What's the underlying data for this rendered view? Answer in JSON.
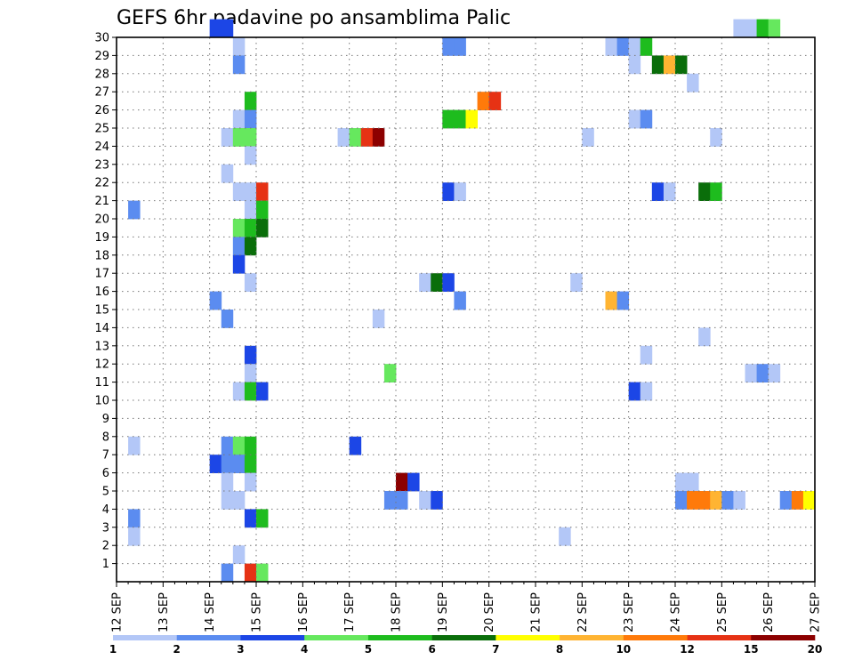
{
  "chart_data": {
    "type": "heatmap",
    "title": "GEFS 6hr padavine po ansamblima Palic",
    "x_ticks": [
      "12 SEP",
      "13 SEP",
      "14 SEP",
      "15 SEP",
      "16 SEP",
      "17 SEP",
      "18 SEP",
      "19 SEP",
      "20 SEP",
      "21 SEP",
      "22 SEP",
      "23 SEP",
      "24 SEP",
      "25 SEP",
      "26 SEP",
      "27 SEP"
    ],
    "y_ticks": [
      1,
      2,
      3,
      4,
      5,
      6,
      7,
      8,
      9,
      10,
      11,
      12,
      13,
      14,
      15,
      16,
      17,
      18,
      19,
      20,
      21,
      22,
      23,
      24,
      25,
      26,
      27,
      28,
      29,
      30
    ],
    "x_range": [
      "12 SEP 00Z",
      "27 SEP 00Z"
    ],
    "time_step_hours": 6,
    "y_range": [
      0,
      30
    ],
    "grid": "dotted",
    "colorbar": {
      "labels": [
        "1",
        "2",
        "3",
        "4",
        "5",
        "6",
        "7",
        "8",
        "10",
        "12",
        "15",
        "20"
      ],
      "colors": [
        "#b3c7f7",
        "#5b8cf0",
        "#1c46e6",
        "#66e85e",
        "#1ebc1e",
        "#0a6e0a",
        "#ffff00",
        "#ffb432",
        "#ff7a0a",
        "#e63214",
        "#8c0000"
      ]
    },
    "levels": [
      "#b3c7f7",
      "#5b8cf0",
      "#1c46e6",
      "#66e85e",
      "#1ebc1e",
      "#0a6e0a",
      "#ffff00",
      "#ffb432",
      "#ff7a0a",
      "#e63214",
      "#8c0000"
    ],
    "cells": [
      [
        "14 SEP 00Z",
        30,
        2
      ],
      [
        "14 SEP 06Z",
        30,
        2
      ],
      [
        "25 SEP 06Z",
        30,
        0
      ],
      [
        "25 SEP 12Z",
        30,
        0
      ],
      [
        "25 SEP 18Z",
        30,
        4
      ],
      [
        "26 SEP 00Z",
        30,
        3
      ],
      [
        "14 SEP 12Z",
        29,
        0
      ],
      [
        "19 SEP 00Z",
        29,
        1
      ],
      [
        "19 SEP 06Z",
        29,
        1
      ],
      [
        "22 SEP 12Z",
        29,
        0
      ],
      [
        "22 SEP 18Z",
        29,
        1
      ],
      [
        "23 SEP 00Z",
        29,
        0
      ],
      [
        "23 SEP 06Z",
        29,
        4
      ],
      [
        "14 SEP 12Z",
        28,
        1
      ],
      [
        "23 SEP 00Z",
        28,
        0
      ],
      [
        "23 SEP 12Z",
        28,
        5
      ],
      [
        "23 SEP 18Z",
        28,
        7
      ],
      [
        "24 SEP 00Z",
        28,
        5
      ],
      [
        "24 SEP 06Z",
        27,
        0
      ],
      [
        "14 SEP 18Z",
        26,
        4
      ],
      [
        "19 SEP 18Z",
        26,
        8
      ],
      [
        "20 SEP 00Z",
        26,
        9
      ],
      [
        "14 SEP 12Z",
        25,
        0
      ],
      [
        "14 SEP 18Z",
        25,
        1
      ],
      [
        "19 SEP 00Z",
        25,
        4
      ],
      [
        "19 SEP 06Z",
        25,
        4
      ],
      [
        "19 SEP 12Z",
        25,
        6
      ],
      [
        "23 SEP 00Z",
        25,
        0
      ],
      [
        "23 SEP 06Z",
        25,
        1
      ],
      [
        "14 SEP 06Z",
        24,
        0
      ],
      [
        "14 SEP 12Z",
        24,
        3
      ],
      [
        "14 SEP 18Z",
        24,
        3
      ],
      [
        "16 SEP 18Z",
        24,
        0
      ],
      [
        "17 SEP 00Z",
        24,
        3
      ],
      [
        "17 SEP 06Z",
        24,
        9
      ],
      [
        "17 SEP 12Z",
        24,
        10
      ],
      [
        "22 SEP 00Z",
        24,
        0
      ],
      [
        "24 SEP 18Z",
        24,
        0
      ],
      [
        "14 SEP 18Z",
        23,
        0
      ],
      [
        "14 SEP 06Z",
        22,
        0
      ],
      [
        "14 SEP 12Z",
        21,
        0
      ],
      [
        "14 SEP 18Z",
        21,
        0
      ],
      [
        "15 SEP 00Z",
        21,
        9
      ],
      [
        "19 SEP 00Z",
        21,
        2
      ],
      [
        "19 SEP 06Z",
        21,
        0
      ],
      [
        "23 SEP 12Z",
        21,
        2
      ],
      [
        "23 SEP 18Z",
        21,
        0
      ],
      [
        "24 SEP 12Z",
        21,
        5
      ],
      [
        "24 SEP 18Z",
        21,
        4
      ],
      [
        "12 SEP 06Z",
        20,
        1
      ],
      [
        "14 SEP 18Z",
        20,
        0
      ],
      [
        "15 SEP 00Z",
        20,
        4
      ],
      [
        "14 SEP 12Z",
        19,
        3
      ],
      [
        "14 SEP 18Z",
        19,
        4
      ],
      [
        "15 SEP 00Z",
        19,
        5
      ],
      [
        "14 SEP 12Z",
        18,
        1
      ],
      [
        "14 SEP 18Z",
        18,
        5
      ],
      [
        "14 SEP 12Z",
        17,
        2
      ],
      [
        "14 SEP 18Z",
        16,
        0
      ],
      [
        "18 SEP 12Z",
        16,
        0
      ],
      [
        "18 SEP 18Z",
        16,
        5
      ],
      [
        "19 SEP 00Z",
        16,
        2
      ],
      [
        "21 SEP 18Z",
        16,
        0
      ],
      [
        "14 SEP 00Z",
        15,
        1
      ],
      [
        "19 SEP 06Z",
        15,
        1
      ],
      [
        "22 SEP 12Z",
        15,
        7
      ],
      [
        "22 SEP 18Z",
        15,
        1
      ],
      [
        "14 SEP 06Z",
        14,
        1
      ],
      [
        "17 SEP 12Z",
        14,
        0
      ],
      [
        "24 SEP 12Z",
        13,
        0
      ],
      [
        "14 SEP 18Z",
        12,
        2
      ],
      [
        "23 SEP 06Z",
        12,
        0
      ],
      [
        "14 SEP 18Z",
        11,
        0
      ],
      [
        "17 SEP 18Z",
        11,
        3
      ],
      [
        "25 SEP 12Z",
        11,
        0
      ],
      [
        "25 SEP 18Z",
        11,
        1
      ],
      [
        "26 SEP 00Z",
        11,
        0
      ],
      [
        "14 SEP 12Z",
        10,
        0
      ],
      [
        "14 SEP 18Z",
        10,
        4
      ],
      [
        "15 SEP 00Z",
        10,
        2
      ],
      [
        "23 SEP 00Z",
        10,
        2
      ],
      [
        "23 SEP 06Z",
        10,
        0
      ],
      [
        "12 SEP 06Z",
        7,
        0
      ],
      [
        "14 SEP 06Z",
        7,
        1
      ],
      [
        "14 SEP 12Z",
        7,
        3
      ],
      [
        "14 SEP 18Z",
        7,
        4
      ],
      [
        "17 SEP 00Z",
        7,
        2
      ],
      [
        "14 SEP 00Z",
        6,
        2
      ],
      [
        "14 SEP 06Z",
        6,
        1
      ],
      [
        "14 SEP 12Z",
        6,
        1
      ],
      [
        "14 SEP 18Z",
        6,
        4
      ],
      [
        "14 SEP 06Z",
        5,
        0
      ],
      [
        "14 SEP 18Z",
        5,
        0
      ],
      [
        "18 SEP 00Z",
        5,
        10
      ],
      [
        "18 SEP 06Z",
        5,
        2
      ],
      [
        "24 SEP 00Z",
        5,
        0
      ],
      [
        "24 SEP 06Z",
        5,
        0
      ],
      [
        "14 SEP 06Z",
        4,
        0
      ],
      [
        "14 SEP 12Z",
        4,
        0
      ],
      [
        "17 SEP 18Z",
        4,
        1
      ],
      [
        "18 SEP 00Z",
        4,
        1
      ],
      [
        "18 SEP 12Z",
        4,
        0
      ],
      [
        "18 SEP 18Z",
        4,
        2
      ],
      [
        "24 SEP 00Z",
        4,
        1
      ],
      [
        "24 SEP 06Z",
        4,
        8
      ],
      [
        "24 SEP 12Z",
        4,
        8
      ],
      [
        "24 SEP 18Z",
        4,
        7
      ],
      [
        "25 SEP 00Z",
        4,
        1
      ],
      [
        "25 SEP 06Z",
        4,
        0
      ],
      [
        "26 SEP 06Z",
        4,
        1
      ],
      [
        "26 SEP 12Z",
        4,
        8
      ],
      [
        "26 SEP 18Z",
        4,
        6
      ],
      [
        "12 SEP 06Z",
        3,
        1
      ],
      [
        "14 SEP 18Z",
        3,
        2
      ],
      [
        "15 SEP 00Z",
        3,
        4
      ],
      [
        "12 SEP 06Z",
        2,
        0
      ],
      [
        "21 SEP 12Z",
        2,
        0
      ],
      [
        "14 SEP 12Z",
        1,
        0
      ],
      [
        "14 SEP 06Z",
        0,
        1
      ],
      [
        "14 SEP 18Z",
        0,
        9
      ],
      [
        "15 SEP 00Z",
        0,
        3
      ]
    ]
  }
}
